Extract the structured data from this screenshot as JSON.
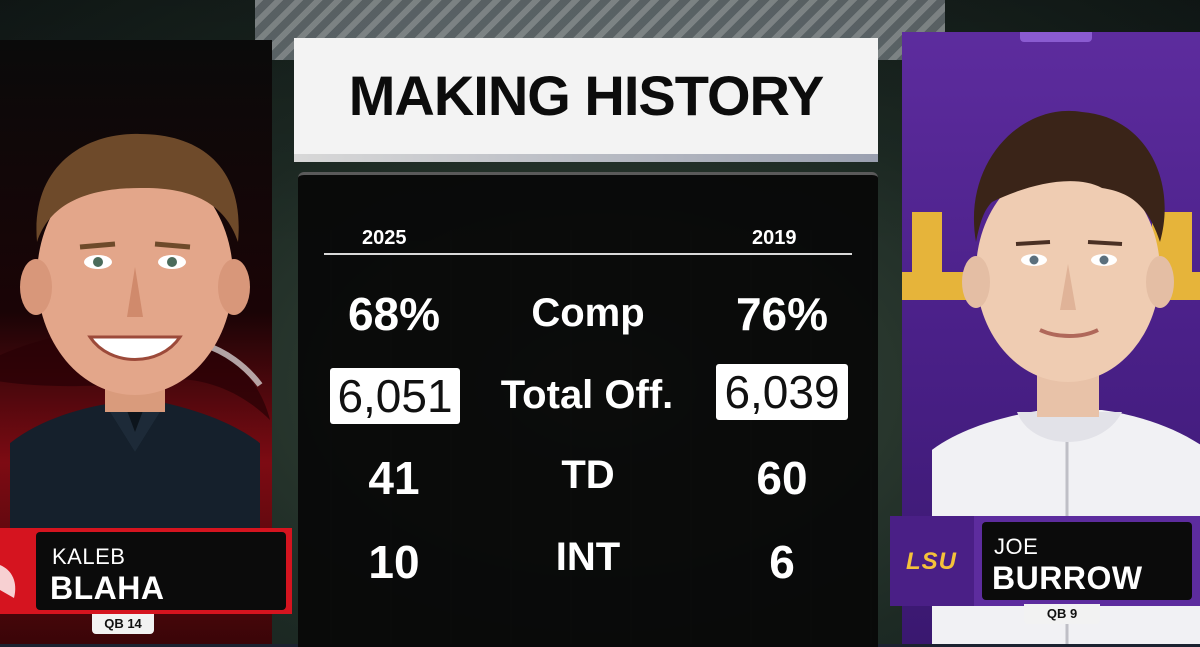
{
  "title": "MAKING HISTORY",
  "left_player": {
    "first_name": "KALEB",
    "last_name": "BLAHA",
    "position": "QB 14",
    "year": "2025",
    "accent": "#d5141f"
  },
  "right_player": {
    "first_name": "JOE",
    "last_name": "BURROW",
    "position": "QB 9",
    "year": "2019",
    "team_logo": "LSU",
    "accent": "#5d2c9e"
  },
  "stats": [
    {
      "label": "Comp",
      "left": "68%",
      "right": "76%",
      "highlight": false
    },
    {
      "label": "Total Off.",
      "left": "6,051",
      "right": "6,039",
      "highlight": true
    },
    {
      "label": "TD",
      "left": "41",
      "right": "60",
      "highlight": false
    },
    {
      "label": "INT",
      "left": "10",
      "right": "6",
      "highlight": false
    }
  ]
}
